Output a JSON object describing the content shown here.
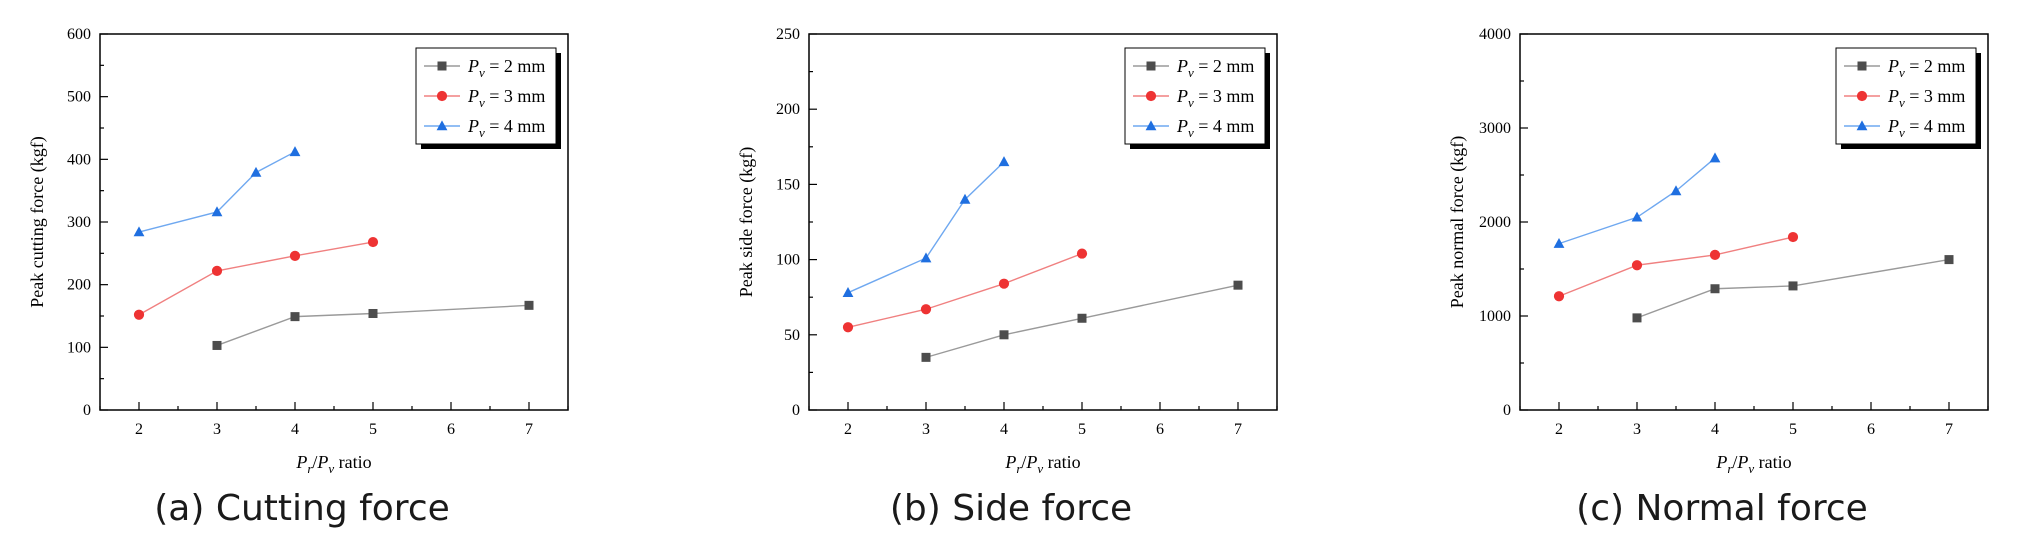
{
  "colors": {
    "series_colors": [
      "#4d4d4d",
      "#ee3333",
      "#1f6fe0"
    ],
    "line_colors": [
      "#9a9a9a",
      "#f08080",
      "#6fa8f0"
    ]
  },
  "chart_data": [
    {
      "type": "line",
      "panel": "a",
      "caption": "(a) Cutting force",
      "xlabel": {
        "main": "P",
        "sub1": "r",
        "mid": "/",
        "main2": "P",
        "sub2": "v",
        "tail": " ratio"
      },
      "ylabel": "Peak cutting force (kgf)",
      "xlim": [
        1.5,
        7.5
      ],
      "ylim": [
        0,
        600
      ],
      "xticks": [
        2,
        3,
        4,
        5,
        6,
        7
      ],
      "yticks": [
        0,
        100,
        200,
        300,
        400,
        500,
        600
      ],
      "legend_position": "top-right",
      "series": [
        {
          "name": "P_v = 2 mm",
          "legend": {
            "sym": "P",
            "sub": "v",
            "rest": " = 2 mm"
          },
          "marker": "square",
          "x": [
            3,
            4,
            5,
            7
          ],
          "y": [
            103,
            149,
            154,
            167
          ]
        },
        {
          "name": "P_v = 3 mm",
          "legend": {
            "sym": "P",
            "sub": "v",
            "rest": " = 3 mm"
          },
          "marker": "circle",
          "x": [
            2,
            3,
            4,
            5
          ],
          "y": [
            152,
            222,
            246,
            268
          ]
        },
        {
          "name": "P_v = 4 mm",
          "legend": {
            "sym": "P",
            "sub": "v",
            "rest": " = 4 mm"
          },
          "marker": "triangle",
          "x": [
            2,
            3,
            3.5,
            4
          ],
          "y": [
            284,
            316,
            379,
            412
          ]
        }
      ]
    },
    {
      "type": "line",
      "panel": "b",
      "caption": "(b) Side force",
      "xlabel": {
        "main": "P",
        "sub1": "r",
        "mid": "/",
        "main2": "P",
        "sub2": "v",
        "tail": " ratio"
      },
      "ylabel": "Peak side force (kgf)",
      "xlim": [
        1.5,
        7.5
      ],
      "ylim": [
        0,
        250
      ],
      "xticks": [
        2,
        3,
        4,
        5,
        6,
        7
      ],
      "yticks": [
        0,
        50,
        100,
        150,
        200,
        250
      ],
      "legend_position": "top-right",
      "series": [
        {
          "name": "P_v = 2 mm",
          "legend": {
            "sym": "P",
            "sub": "v",
            "rest": " = 2 mm"
          },
          "marker": "square",
          "x": [
            3,
            4,
            5,
            7
          ],
          "y": [
            35,
            50,
            61,
            83
          ]
        },
        {
          "name": "P_v = 3 mm",
          "legend": {
            "sym": "P",
            "sub": "v",
            "rest": " = 3 mm"
          },
          "marker": "circle",
          "x": [
            2,
            3,
            4,
            5
          ],
          "y": [
            55,
            67,
            84,
            104
          ]
        },
        {
          "name": "P_v = 4 mm",
          "legend": {
            "sym": "P",
            "sub": "v",
            "rest": " = 4 mm"
          },
          "marker": "triangle",
          "x": [
            2,
            3,
            3.5,
            4
          ],
          "y": [
            78,
            101,
            140,
            165
          ]
        }
      ]
    },
    {
      "type": "line",
      "panel": "c",
      "caption": "(c) Normal force",
      "xlabel": {
        "main": "P",
        "sub1": "r",
        "mid": "/",
        "main2": "P",
        "sub2": "v",
        "tail": " ratio"
      },
      "ylabel": "Peak normal force (kgf)",
      "xlim": [
        1.5,
        7.5
      ],
      "ylim": [
        0,
        4000
      ],
      "xticks": [
        2,
        3,
        4,
        5,
        6,
        7
      ],
      "yticks": [
        0,
        1000,
        2000,
        3000,
        4000
      ],
      "legend_position": "top-right",
      "series": [
        {
          "name": "P_v = 2 mm",
          "legend": {
            "sym": "P",
            "sub": "v",
            "rest": " = 2 mm"
          },
          "marker": "square",
          "x": [
            3,
            4,
            5,
            7
          ],
          "y": [
            980,
            1290,
            1320,
            1600
          ]
        },
        {
          "name": "P_v = 3 mm",
          "legend": {
            "sym": "P",
            "sub": "v",
            "rest": " = 3 mm"
          },
          "marker": "circle",
          "x": [
            2,
            3,
            4,
            5
          ],
          "y": [
            1210,
            1540,
            1650,
            1840
          ]
        },
        {
          "name": "P_v = 4 mm",
          "legend": {
            "sym": "P",
            "sub": "v",
            "rest": " = 4 mm"
          },
          "marker": "triangle",
          "x": [
            2,
            3,
            3.5,
            4
          ],
          "y": [
            1770,
            2050,
            2330,
            2680
          ]
        }
      ]
    }
  ]
}
